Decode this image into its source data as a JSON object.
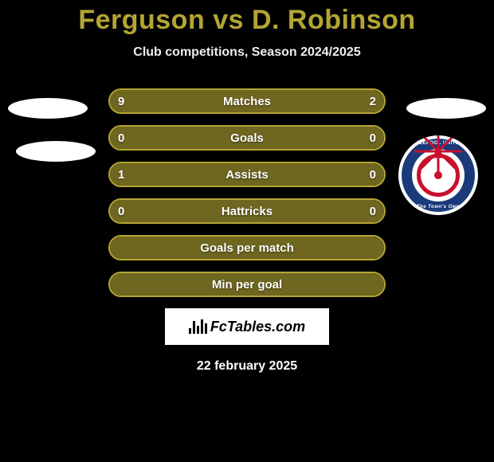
{
  "title_left": "Ferguson",
  "title_vs": "vs",
  "title_right": "D. Robinson",
  "title_color": "#b4a533",
  "subtitle": "Club competitions, Season 2024/2025",
  "bars": [
    {
      "label": "Matches",
      "left": "9",
      "right": "2",
      "left_pct": 81.8,
      "right_pct": 18.2,
      "show_values": true
    },
    {
      "label": "Goals",
      "left": "0",
      "right": "0",
      "left_pct": 50,
      "right_pct": 50,
      "show_values": true
    },
    {
      "label": "Assists",
      "left": "1",
      "right": "0",
      "left_pct": 100,
      "right_pct": 0,
      "show_values": true
    },
    {
      "label": "Hattricks",
      "left": "0",
      "right": "0",
      "left_pct": 50,
      "right_pct": 50,
      "show_values": true
    },
    {
      "label": "Goals per match",
      "left": "",
      "right": "",
      "left_pct": 50,
      "right_pct": 50,
      "show_values": false
    },
    {
      "label": "Min per goal",
      "left": "",
      "right": "",
      "left_pct": 50,
      "right_pct": 50,
      "show_values": false
    }
  ],
  "bar_style": {
    "border_color": "#b4a533",
    "left_fill": "#6f6620",
    "right_fill": "#6f6620",
    "empty_fill": "#000000"
  },
  "fctables_label": "FcTables.com",
  "date": "22 february 2025",
  "crest": {
    "outer_color": "#1a3a7a",
    "wheel_color": "#c8102e",
    "top_text": "HARTLEPOOL UNITED FC",
    "bottom_text": "The Town's Own"
  }
}
